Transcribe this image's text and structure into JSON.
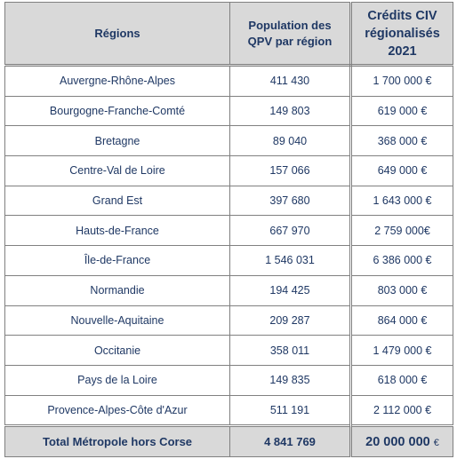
{
  "table": {
    "header": [
      "Régions",
      "Population des QPV par région",
      "Crédits CIV régionalisés 2021"
    ],
    "rows": [
      [
        "Auvergne-Rhône-Alpes",
        "411 430",
        "1 700 000 €"
      ],
      [
        "Bourgogne-Franche-Comté",
        "149 803",
        "619 000 €"
      ],
      [
        "Bretagne",
        "89 040",
        "368 000 €"
      ],
      [
        "Centre-Val de Loire",
        "157 066",
        "649 000 €"
      ],
      [
        "Grand Est",
        "397 680",
        "1 643 000 €"
      ],
      [
        "Hauts-de-France",
        "667 970",
        "2 759 000€"
      ],
      [
        "Île-de-France",
        "1 546 031",
        "6 386 000 €"
      ],
      [
        "Normandie",
        "194 425",
        "803 000 €"
      ],
      [
        "Nouvelle-Aquitaine",
        "209 287",
        "864 000 €"
      ],
      [
        "Occitanie",
        "358 011",
        "1 479 000 €"
      ],
      [
        "Pays de la Loire",
        "149 835",
        "618 000 €"
      ],
      [
        "Provence-Alpes-Côte d'Azur",
        "511 191",
        "2 112 000 €"
      ]
    ],
    "total": {
      "label": "Total Métropole hors Corse",
      "population": "4 841 769",
      "credits": "20 000 000",
      "currency": "€"
    }
  }
}
